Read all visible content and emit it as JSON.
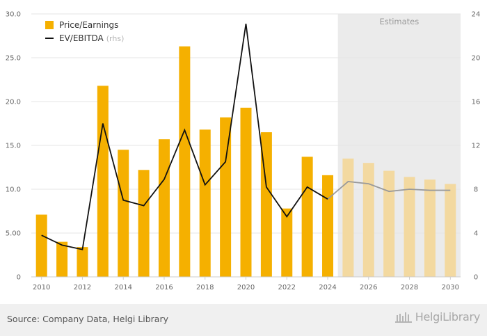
{
  "colors": {
    "pe_actual": "#f5b000",
    "pe_estimate": "#f3d9a0",
    "ev_actual": "#111111",
    "ev_estimate": "#9a9a9a",
    "estimates_band": "#ebebeb",
    "grid": "#e6e6e6",
    "tick_text": "#666666"
  },
  "chart_data": {
    "type": "bar",
    "x": [
      "2010",
      "2011",
      "2012",
      "2013",
      "2014",
      "2015",
      "2016",
      "2017",
      "2018",
      "2019",
      "2020",
      "2021",
      "2022",
      "2023",
      "2024",
      "2025",
      "2026",
      "2027",
      "2028",
      "2029",
      "2030"
    ],
    "estimate_start": "2025",
    "estimates_label": "Estimates",
    "series": [
      {
        "name": "Price/Earnings",
        "type": "bar",
        "axis": "left",
        "values": [
          7.1,
          4.0,
          3.4,
          21.8,
          14.5,
          12.2,
          15.7,
          26.3,
          16.8,
          18.2,
          19.3,
          16.5,
          7.8,
          13.7,
          11.6,
          13.5,
          13.0,
          12.1,
          11.4,
          11.1,
          10.6
        ]
      },
      {
        "name": "EV/EBITDA",
        "name_suffix": "(rhs)",
        "type": "line",
        "axis": "right",
        "values": [
          3.8,
          2.9,
          2.5,
          14.0,
          7.0,
          6.5,
          8.9,
          13.4,
          8.4,
          10.5,
          23.1,
          8.2,
          5.5,
          8.2,
          7.1,
          8.7,
          8.5,
          7.8,
          8.0,
          7.9,
          7.9
        ]
      }
    ],
    "y_left": {
      "range": [
        0,
        30
      ],
      "ticks": [
        "0",
        "5.00",
        "10.0",
        "15.0",
        "20.0",
        "25.0",
        "30.0"
      ]
    },
    "y_right": {
      "range": [
        0,
        24
      ],
      "ticks": [
        "0",
        "4",
        "8",
        "12",
        "16",
        "20",
        "24"
      ]
    },
    "x_ticks": [
      "2010",
      "2012",
      "2014",
      "2016",
      "2018",
      "2020",
      "2022",
      "2024",
      "2026",
      "2028",
      "2030"
    ],
    "grid": true,
    "legend_position": "top-left"
  },
  "footer": {
    "source": "Source: Company Data, Helgi Library",
    "logo_text": "HelgiLibrary"
  }
}
